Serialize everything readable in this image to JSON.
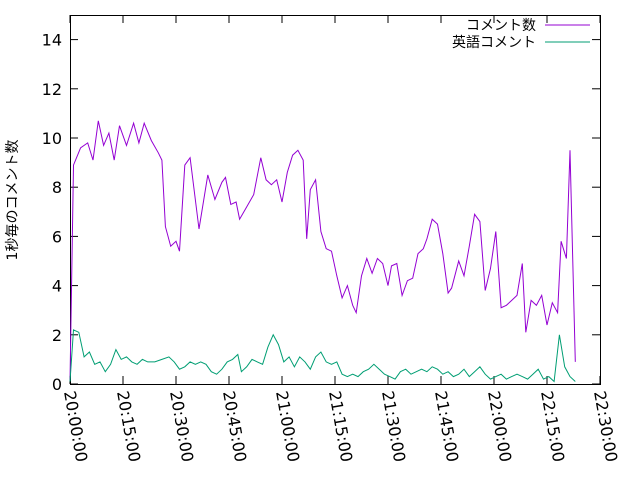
{
  "chart_data": {
    "type": "line",
    "title": "",
    "xlabel": "",
    "ylabel": "1秒毎のコメント数",
    "ylim": [
      0,
      15
    ],
    "yticks": [
      0,
      2,
      4,
      6,
      8,
      10,
      12,
      14
    ],
    "xticks": [
      "20:00:00",
      "20:15:00",
      "20:30:00",
      "20:45:00",
      "21:00:00",
      "21:15:00",
      "21:30:00",
      "21:45:00",
      "22:00:00",
      "22:15:00",
      "22:30:00"
    ],
    "xlim": [
      "20:00:00",
      "22:30:00"
    ],
    "grid": false,
    "legend_position": "top-right",
    "series": [
      {
        "name": "コメント数",
        "color": "#9400d3",
        "points": [
          [
            "20:00:00",
            0.1
          ],
          [
            "20:01:00",
            8.9
          ],
          [
            "20:03:00",
            9.6
          ],
          [
            "20:05:00",
            9.8
          ],
          [
            "20:06:30",
            9.1
          ],
          [
            "20:08:00",
            10.7
          ],
          [
            "20:09:30",
            9.7
          ],
          [
            "20:11:00",
            10.2
          ],
          [
            "20:12:30",
            9.1
          ],
          [
            "20:14:00",
            10.5
          ],
          [
            "20:16:00",
            9.7
          ],
          [
            "20:18:00",
            10.6
          ],
          [
            "20:19:30",
            9.8
          ],
          [
            "20:21:00",
            10.6
          ],
          [
            "20:23:00",
            9.9
          ],
          [
            "20:25:00",
            9.4
          ],
          [
            "20:26:00",
            9.1
          ],
          [
            "20:27:00",
            6.4
          ],
          [
            "20:28:30",
            5.6
          ],
          [
            "20:30:00",
            5.8
          ],
          [
            "20:31:00",
            5.4
          ],
          [
            "20:32:30",
            8.9
          ],
          [
            "20:34:00",
            9.2
          ],
          [
            "20:36:30",
            6.3
          ],
          [
            "20:39:00",
            8.5
          ],
          [
            "20:41:00",
            7.5
          ],
          [
            "20:43:00",
            8.2
          ],
          [
            "20:44:00",
            8.4
          ],
          [
            "20:45:30",
            7.3
          ],
          [
            "20:47:00",
            7.4
          ],
          [
            "20:48:00",
            6.7
          ],
          [
            "20:50:00",
            7.2
          ],
          [
            "20:52:00",
            7.7
          ],
          [
            "20:54:00",
            9.2
          ],
          [
            "20:55:30",
            8.3
          ],
          [
            "20:57:00",
            8.1
          ],
          [
            "20:58:30",
            8.3
          ],
          [
            "21:00:00",
            7.4
          ],
          [
            "21:01:30",
            8.6
          ],
          [
            "21:03:00",
            9.3
          ],
          [
            "21:04:30",
            9.5
          ],
          [
            "21:06:00",
            9.1
          ],
          [
            "21:07:00",
            5.9
          ],
          [
            "21:08:00",
            7.9
          ],
          [
            "21:09:30",
            8.3
          ],
          [
            "21:11:00",
            6.2
          ],
          [
            "21:12:30",
            5.5
          ],
          [
            "21:14:00",
            5.4
          ],
          [
            "21:15:30",
            4.4
          ],
          [
            "21:17:00",
            3.5
          ],
          [
            "21:18:30",
            4.0
          ],
          [
            "21:20:00",
            3.2
          ],
          [
            "21:21:00",
            2.9
          ],
          [
            "21:22:30",
            4.4
          ],
          [
            "21:24:00",
            5.1
          ],
          [
            "21:25:30",
            4.5
          ],
          [
            "21:27:00",
            5.1
          ],
          [
            "21:28:30",
            4.9
          ],
          [
            "21:30:00",
            4.0
          ],
          [
            "21:31:00",
            4.8
          ],
          [
            "21:32:30",
            4.9
          ],
          [
            "21:34:00",
            3.6
          ],
          [
            "21:35:30",
            4.2
          ],
          [
            "21:37:00",
            4.3
          ],
          [
            "21:38:30",
            5.3
          ],
          [
            "21:40:00",
            5.5
          ],
          [
            "21:41:00",
            5.9
          ],
          [
            "21:42:30",
            6.7
          ],
          [
            "21:44:00",
            6.5
          ],
          [
            "21:45:30",
            5.3
          ],
          [
            "21:47:00",
            3.7
          ],
          [
            "21:48:00",
            3.9
          ],
          [
            "21:50:00",
            5.0
          ],
          [
            "21:51:30",
            4.4
          ],
          [
            "21:53:00",
            5.6
          ],
          [
            "21:54:30",
            6.9
          ],
          [
            "21:56:00",
            6.6
          ],
          [
            "21:57:30",
            3.8
          ],
          [
            "21:59:00",
            4.7
          ],
          [
            "22:00:30",
            6.2
          ],
          [
            "22:02:00",
            3.1
          ],
          [
            "22:03:30",
            3.2
          ],
          [
            "22:05:00",
            3.4
          ],
          [
            "22:06:30",
            3.6
          ],
          [
            "22:08:00",
            4.9
          ],
          [
            "22:09:00",
            2.1
          ],
          [
            "22:10:30",
            3.4
          ],
          [
            "22:12:00",
            3.2
          ],
          [
            "22:13:30",
            3.6
          ],
          [
            "22:15:00",
            2.4
          ],
          [
            "22:16:30",
            3.3
          ],
          [
            "22:18:00",
            2.9
          ],
          [
            "22:19:00",
            5.8
          ],
          [
            "22:20:30",
            5.1
          ],
          [
            "22:21:30",
            9.5
          ],
          [
            "22:23:00",
            0.9
          ]
        ]
      },
      {
        "name": "英語コメント",
        "color": "#009e73",
        "points": [
          [
            "20:00:00",
            0.1
          ],
          [
            "20:01:00",
            2.2
          ],
          [
            "20:02:30",
            2.1
          ],
          [
            "20:04:00",
            1.1
          ],
          [
            "20:05:30",
            1.3
          ],
          [
            "20:07:00",
            0.8
          ],
          [
            "20:08:30",
            0.9
          ],
          [
            "20:10:00",
            0.5
          ],
          [
            "20:11:30",
            0.8
          ],
          [
            "20:13:00",
            1.4
          ],
          [
            "20:14:30",
            1.0
          ],
          [
            "20:16:00",
            1.1
          ],
          [
            "20:17:30",
            0.9
          ],
          [
            "20:19:00",
            0.8
          ],
          [
            "20:20:30",
            1.0
          ],
          [
            "20:22:00",
            0.9
          ],
          [
            "20:24:00",
            0.9
          ],
          [
            "20:26:00",
            1.0
          ],
          [
            "20:28:00",
            1.1
          ],
          [
            "20:29:30",
            0.9
          ],
          [
            "20:31:00",
            0.6
          ],
          [
            "20:32:30",
            0.7
          ],
          [
            "20:34:00",
            0.9
          ],
          [
            "20:35:30",
            0.8
          ],
          [
            "20:37:00",
            0.9
          ],
          [
            "20:38:30",
            0.8
          ],
          [
            "20:40:00",
            0.5
          ],
          [
            "20:41:30",
            0.4
          ],
          [
            "20:43:00",
            0.6
          ],
          [
            "20:44:30",
            0.9
          ],
          [
            "20:46:00",
            1.0
          ],
          [
            "20:47:30",
            1.2
          ],
          [
            "20:48:30",
            0.5
          ],
          [
            "20:50:00",
            0.7
          ],
          [
            "20:51:30",
            1.0
          ],
          [
            "20:53:00",
            0.9
          ],
          [
            "20:54:30",
            0.8
          ],
          [
            "20:56:00",
            1.5
          ],
          [
            "20:57:30",
            2.0
          ],
          [
            "20:59:00",
            1.6
          ],
          [
            "21:00:30",
            0.9
          ],
          [
            "21:02:00",
            1.1
          ],
          [
            "21:03:30",
            0.7
          ],
          [
            "21:05:00",
            1.1
          ],
          [
            "21:06:30",
            0.9
          ],
          [
            "21:08:00",
            0.6
          ],
          [
            "21:09:30",
            1.1
          ],
          [
            "21:11:00",
            1.3
          ],
          [
            "21:12:30",
            0.9
          ],
          [
            "21:14:00",
            0.8
          ],
          [
            "21:15:30",
            0.9
          ],
          [
            "21:17:00",
            0.4
          ],
          [
            "21:18:30",
            0.3
          ],
          [
            "21:20:00",
            0.4
          ],
          [
            "21:21:30",
            0.3
          ],
          [
            "21:23:00",
            0.5
          ],
          [
            "21:24:30",
            0.6
          ],
          [
            "21:26:00",
            0.8
          ],
          [
            "21:27:30",
            0.6
          ],
          [
            "21:29:00",
            0.4
          ],
          [
            "21:30:30",
            0.3
          ],
          [
            "21:32:00",
            0.2
          ],
          [
            "21:33:30",
            0.5
          ],
          [
            "21:35:00",
            0.6
          ],
          [
            "21:36:30",
            0.4
          ],
          [
            "21:38:00",
            0.5
          ],
          [
            "21:39:30",
            0.6
          ],
          [
            "21:41:00",
            0.5
          ],
          [
            "21:42:30",
            0.7
          ],
          [
            "21:44:00",
            0.6
          ],
          [
            "21:45:30",
            0.4
          ],
          [
            "21:47:00",
            0.5
          ],
          [
            "21:48:30",
            0.3
          ],
          [
            "21:50:00",
            0.4
          ],
          [
            "21:51:30",
            0.6
          ],
          [
            "21:53:00",
            0.3
          ],
          [
            "21:54:30",
            0.5
          ],
          [
            "21:56:00",
            0.7
          ],
          [
            "21:57:30",
            0.4
          ],
          [
            "21:59:00",
            0.2
          ],
          [
            "22:00:30",
            0.3
          ],
          [
            "22:02:00",
            0.4
          ],
          [
            "22:03:30",
            0.2
          ],
          [
            "22:05:00",
            0.3
          ],
          [
            "22:06:30",
            0.4
          ],
          [
            "22:08:00",
            0.3
          ],
          [
            "22:09:30",
            0.2
          ],
          [
            "22:11:00",
            0.4
          ],
          [
            "22:12:30",
            0.6
          ],
          [
            "22:14:00",
            0.2
          ],
          [
            "22:15:30",
            0.3
          ],
          [
            "22:17:00",
            0.1
          ],
          [
            "22:18:30",
            2.0
          ],
          [
            "22:20:00",
            0.7
          ],
          [
            "22:21:30",
            0.3
          ],
          [
            "22:23:00",
            0.1
          ]
        ]
      }
    ]
  }
}
